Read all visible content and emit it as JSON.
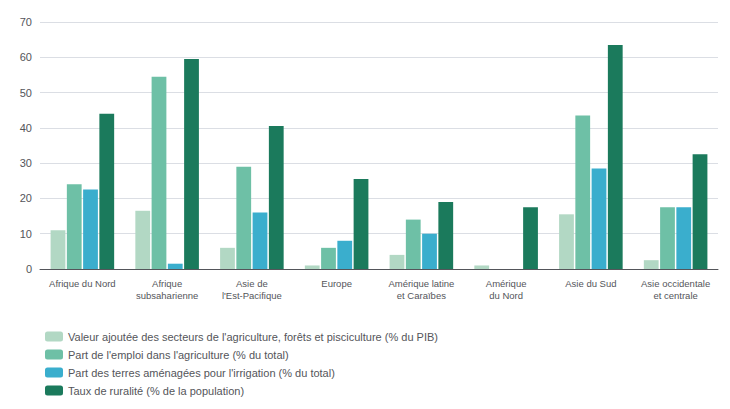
{
  "chart_data": {
    "type": "bar",
    "categories": [
      "Afrique du Nord",
      "Afrique\nsubsaharienne",
      "Asie de\nl'Est-Pacifique",
      "Europe",
      "Amérique latine\net Caraïbes",
      "Amérique\ndu Nord",
      "Asie du Sud",
      "Asie occidentale\net centrale"
    ],
    "series": [
      {
        "name": "Valeur ajoutée des secteurs de l'agriculture, forêts et pisciculture (% du PIB)",
        "color": "#b2d8c4",
        "values": [
          11,
          16.5,
          6,
          1,
          4,
          1,
          15.5,
          2.5
        ]
      },
      {
        "name": "Part de l'emploi dans l'agriculture (% du total)",
        "color": "#6ec0a6",
        "values": [
          24,
          54.5,
          29,
          6,
          14,
          0,
          43.5,
          17.5
        ]
      },
      {
        "name": "Part des terres aménagées pour l'irrigation (% du total)",
        "color": "#3aaecd",
        "values": [
          22.5,
          1.5,
          16,
          8,
          10,
          0,
          28.5,
          17.5
        ]
      },
      {
        "name": "Taux de ruralité (% de la population)",
        "color": "#1b7a5c",
        "values": [
          44,
          59.5,
          40.5,
          25.5,
          19,
          17.5,
          63.5,
          32.5
        ]
      }
    ],
    "ylim": [
      0,
      70
    ],
    "yticks": [
      0,
      10,
      20,
      30,
      40,
      50,
      60,
      70
    ],
    "grid": true,
    "legend": "lower left"
  }
}
